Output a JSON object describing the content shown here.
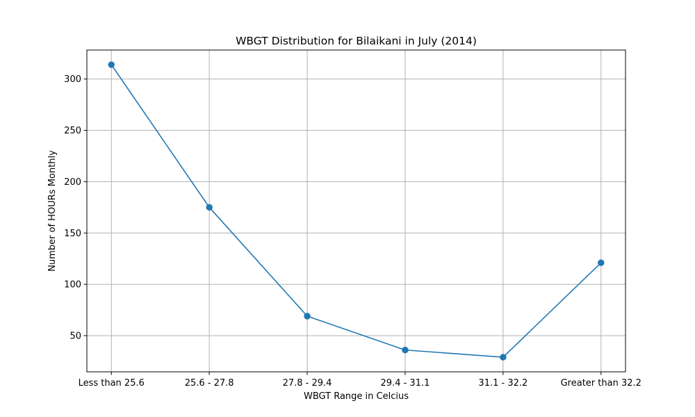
{
  "chart_data": {
    "type": "line",
    "title": "WBGT Distribution for Bilaikani in July (2014)",
    "xlabel": "WBGT Range in Celcius",
    "ylabel": "Number of HOURs Monthly",
    "categories": [
      "Less than 25.6",
      "25.6 - 27.8",
      "27.8 - 29.4",
      "29.4 - 31.1",
      "31.1 - 32.2",
      "Greater than 32.2"
    ],
    "series": [
      {
        "values": [
          314,
          175,
          69,
          36,
          29,
          121
        ]
      }
    ],
    "ylim": [
      14.75,
      328.25
    ],
    "yticks": [
      50,
      100,
      150,
      200,
      250,
      300
    ],
    "grid": true,
    "marker": "circle",
    "line_color": "#1f77b4",
    "grid_color": "#b0b0b0"
  }
}
